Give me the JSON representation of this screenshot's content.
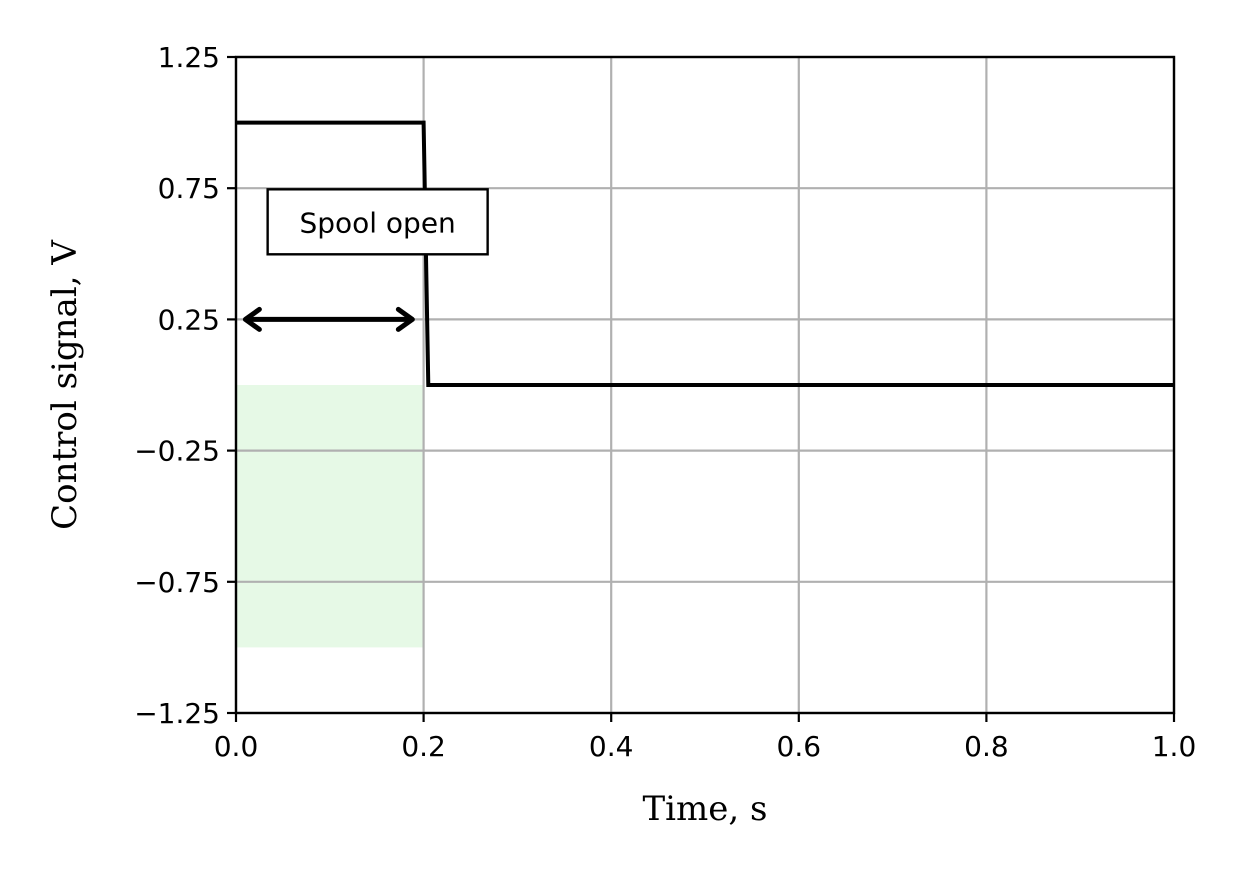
{
  "chart_data": {
    "type": "line",
    "title": "",
    "xlabel": "Time, s",
    "ylabel": "Control signal, V",
    "xlim": [
      0.0,
      1.0
    ],
    "ylim": [
      -1.25,
      1.25
    ],
    "xticks": [
      0.0,
      0.2,
      0.4,
      0.6,
      0.8,
      1.0
    ],
    "xtick_labels": [
      "0.0",
      "0.2",
      "0.4",
      "0.6",
      "0.8",
      "1.0"
    ],
    "yticks": [
      1.25,
      0.75,
      0.25,
      -0.25,
      -0.75,
      -1.25
    ],
    "ytick_labels": [
      "1.25",
      "0.75",
      "0.25",
      "−0.25",
      "−0.75",
      "−1.25"
    ],
    "grid": true,
    "series": [
      {
        "color": "#000000",
        "x": [
          0.0,
          0.2,
          0.205,
          1.0
        ],
        "y": [
          1.0,
          1.0,
          0.0,
          0.0
        ]
      }
    ],
    "shaded_region": {
      "x": [
        0.0,
        0.2
      ],
      "y": [
        -1.0,
        0.0
      ],
      "color": "#e6f9e6"
    },
    "annotations": [
      {
        "text": "Spool open",
        "x": 0.151,
        "y": 0.62
      }
    ],
    "double_arrow": {
      "x_start": 0.01,
      "x_end": 0.188,
      "y": 0.25
    }
  }
}
